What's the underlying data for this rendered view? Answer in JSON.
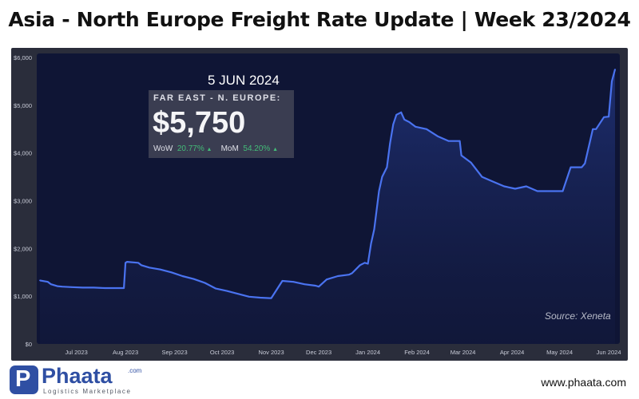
{
  "title": "Asia - North Europe Freight Rate Update | Week 23/2024",
  "info": {
    "date": "5 JUN 2024",
    "label": "FAR EAST - N. EUROPE:",
    "value": "$5,750",
    "wow_label": "WoW",
    "wow_value": "20.77%",
    "mom_label": "MoM",
    "mom_value": "54.20%"
  },
  "source": "Source: Xeneta",
  "logo": {
    "name": "Phaata",
    "letter": "P",
    "com": ".com",
    "tagline": "Logistics Marketplace"
  },
  "website": "www.phaata.com",
  "colors": {
    "panel": "#2a2d3b",
    "plot": "#0f1535",
    "line": "#4a73f0",
    "positive": "#46c37b"
  },
  "chart_data": {
    "type": "area",
    "ylabel": "",
    "xlabel": "",
    "ylim": [
      0,
      6000
    ],
    "y_ticks": [
      "$0",
      "$1,000",
      "$2,000",
      "$3,000",
      "$4,000",
      "$5,000",
      "$6,000"
    ],
    "y_tick_values": [
      0,
      1000,
      2000,
      3000,
      4000,
      5000,
      6000
    ],
    "x_tick_labels": [
      "Jul 2023",
      "Aug 2023",
      "Sep 2023",
      "Oct 2023",
      "Nov 2023",
      "Dec 2023",
      "Jan 2024",
      "Feb 2024",
      "Mar 2024",
      "Apr 2024",
      "May 2024",
      "Jun 2024"
    ],
    "x_tick_dates": [
      "2023-07-01",
      "2023-08-01",
      "2023-09-01",
      "2023-10-01",
      "2023-11-01",
      "2023-12-01",
      "2024-01-01",
      "2024-02-01",
      "2024-03-01",
      "2024-04-01",
      "2024-05-01",
      "2024-06-01"
    ],
    "series": [
      {
        "x": [
          "2023-06-08",
          "2023-06-13",
          "2023-06-15",
          "2023-06-19",
          "2023-06-22",
          "2023-06-28",
          "2023-07-05",
          "2023-07-12",
          "2023-07-19",
          "2023-07-26",
          "2023-07-31",
          "2023-08-01",
          "2023-08-02",
          "2023-08-09",
          "2023-08-11",
          "2023-08-16",
          "2023-08-23",
          "2023-08-30",
          "2023-09-06",
          "2023-09-13",
          "2023-09-20",
          "2023-09-27",
          "2023-10-04",
          "2023-10-11",
          "2023-10-18",
          "2023-10-25",
          "2023-10-31",
          "2023-11-01",
          "2023-11-08",
          "2023-11-15",
          "2023-11-22",
          "2023-11-29",
          "2023-12-01",
          "2023-12-06",
          "2023-12-13",
          "2023-12-20",
          "2023-12-22",
          "2023-12-27",
          "2023-12-30",
          "2024-01-01",
          "2024-01-03",
          "2024-01-05",
          "2024-01-08",
          "2024-01-10",
          "2024-01-13",
          "2024-01-15",
          "2024-01-17",
          "2024-01-19",
          "2024-01-22",
          "2024-01-24",
          "2024-01-27",
          "2024-01-31",
          "2024-02-07",
          "2024-02-14",
          "2024-02-21",
          "2024-02-28",
          "2024-02-29",
          "2024-03-06",
          "2024-03-13",
          "2024-03-20",
          "2024-03-27",
          "2024-04-03",
          "2024-04-10",
          "2024-04-17",
          "2024-04-24",
          "2024-05-01",
          "2024-05-03",
          "2024-05-08",
          "2024-05-15",
          "2024-05-17",
          "2024-05-22",
          "2024-05-24",
          "2024-05-29",
          "2024-06-01",
          "2024-06-03",
          "2024-06-05"
        ],
        "y": [
          1330,
          1300,
          1250,
          1210,
          1200,
          1190,
          1180,
          1180,
          1170,
          1170,
          1170,
          1700,
          1720,
          1700,
          1650,
          1600,
          1560,
          1500,
          1420,
          1360,
          1280,
          1160,
          1110,
          1050,
          990,
          970,
          960,
          960,
          1320,
          1300,
          1250,
          1220,
          1200,
          1350,
          1420,
          1450,
          1480,
          1650,
          1700,
          1680,
          2100,
          2400,
          3200,
          3500,
          3700,
          4200,
          4600,
          4800,
          4850,
          4700,
          4650,
          4550,
          4500,
          4350,
          4250,
          4250,
          3950,
          3800,
          3500,
          3400,
          3300,
          3250,
          3300,
          3200,
          3200,
          3200,
          3200,
          3700,
          3700,
          3780,
          4500,
          4500,
          4750,
          4760,
          5500,
          5750
        ]
      }
    ],
    "grid": false,
    "legend": "none"
  }
}
